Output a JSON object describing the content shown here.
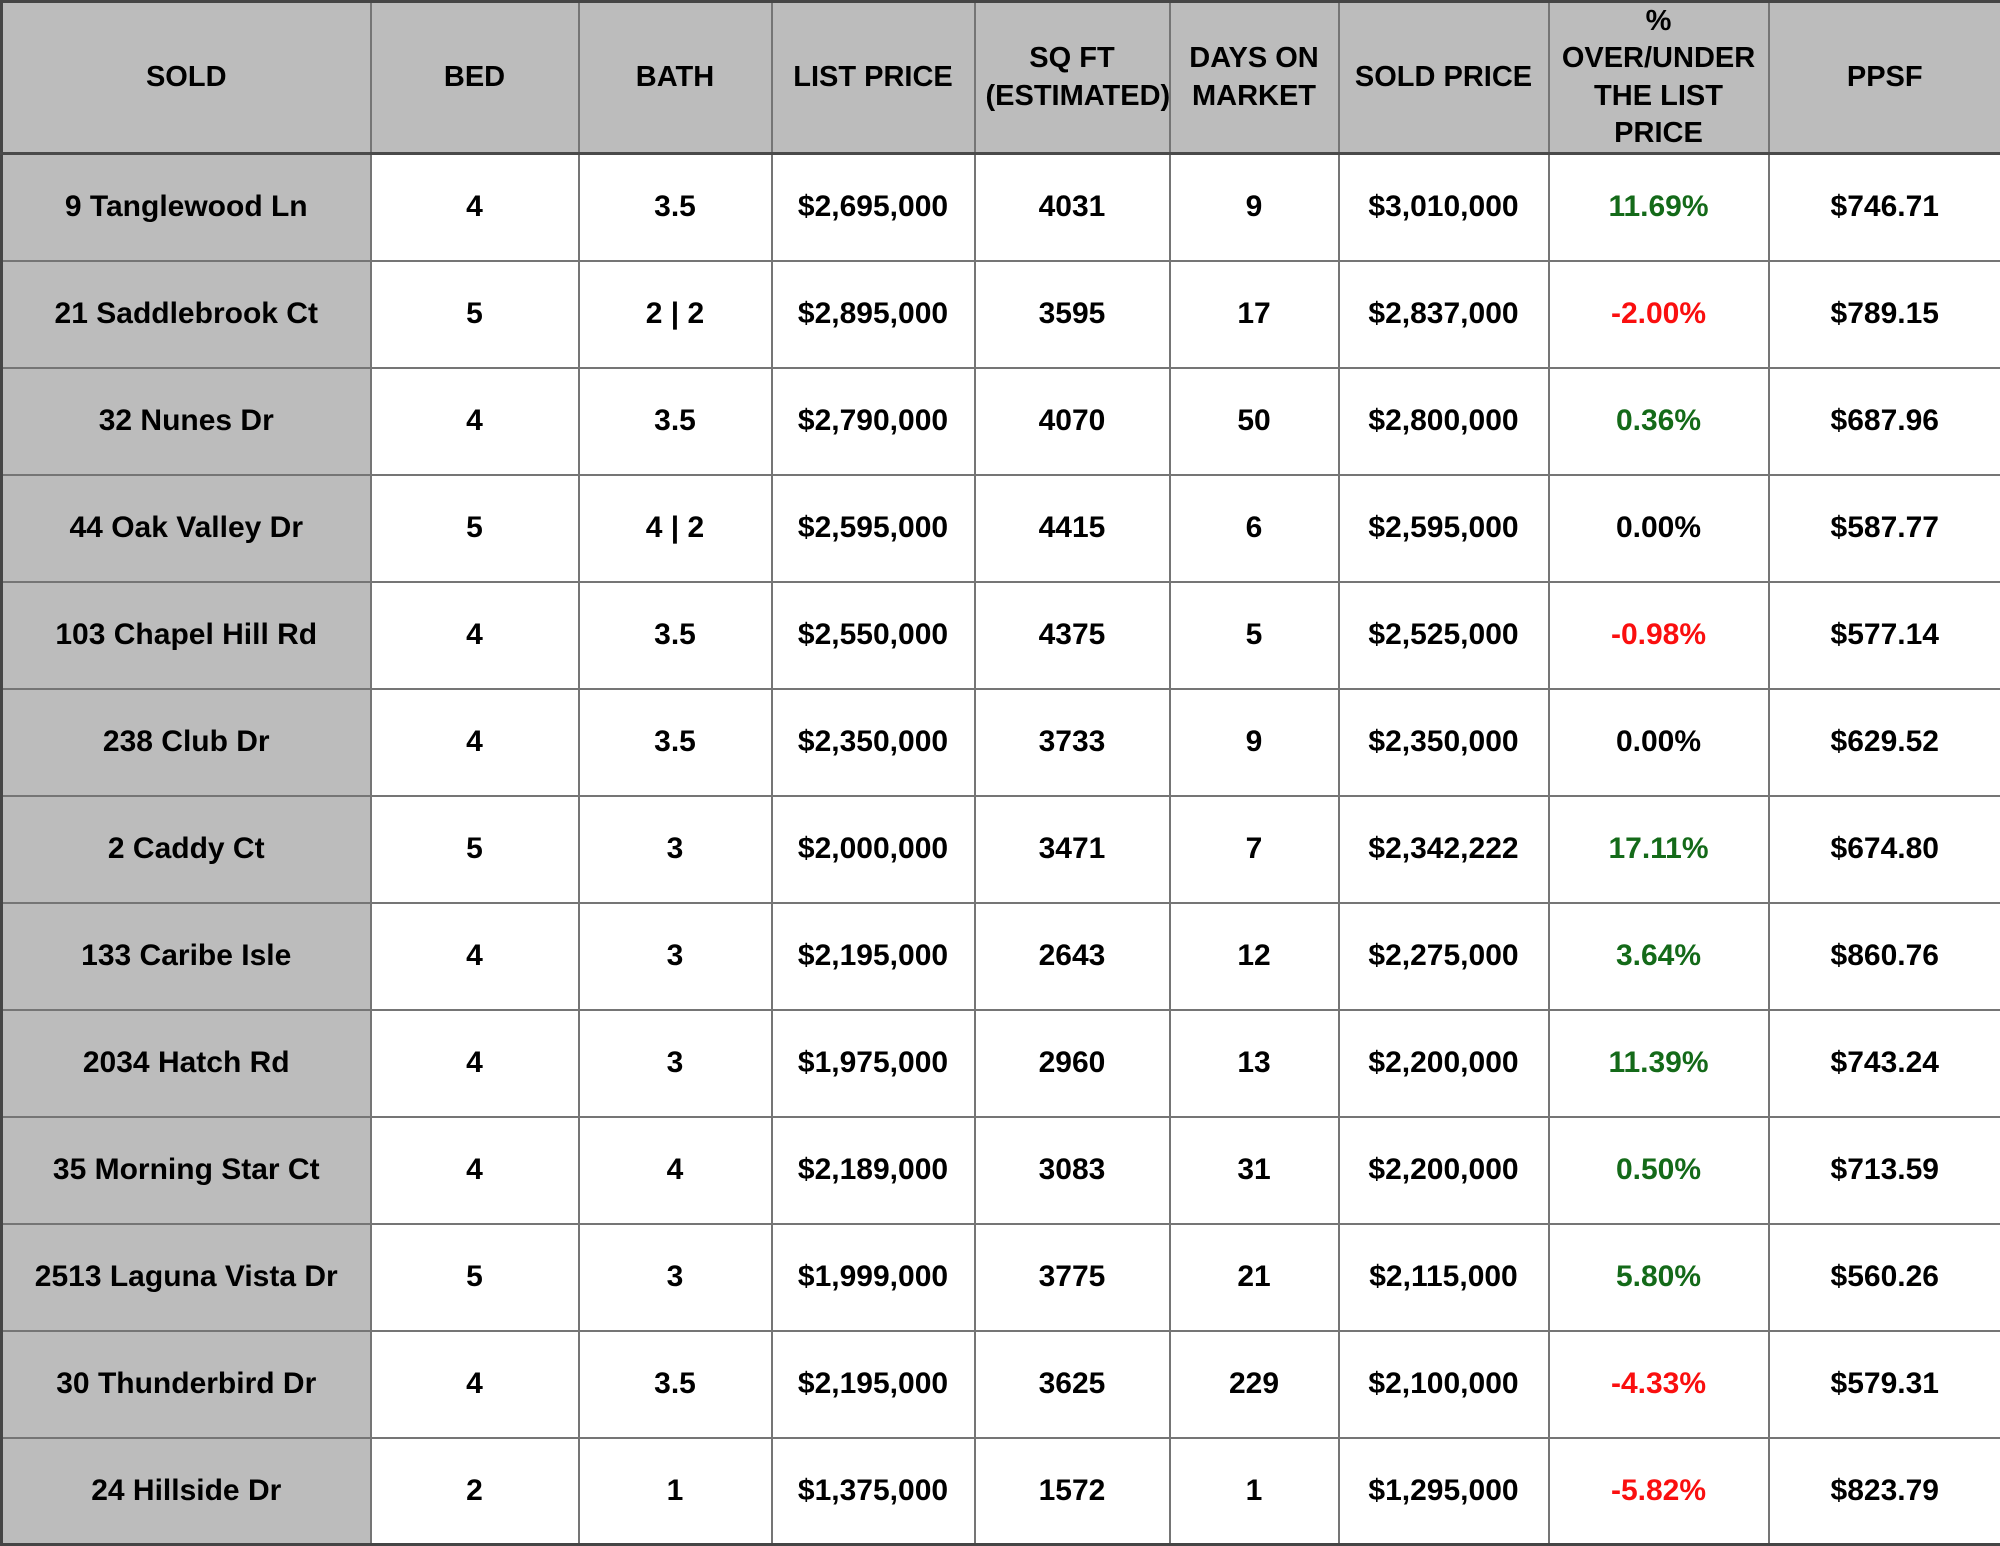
{
  "chart_data": {
    "type": "table",
    "columns": [
      {
        "id": "address",
        "label": "SOLD"
      },
      {
        "id": "bed",
        "label": "BED"
      },
      {
        "id": "bath",
        "label": "BATH"
      },
      {
        "id": "list_price",
        "label": "LIST PRICE"
      },
      {
        "id": "sqft",
        "label": "SQ FT (ESTIMATED)"
      },
      {
        "id": "days_on_market",
        "label": "DAYS ON MARKET"
      },
      {
        "id": "sold_price",
        "label": "SOLD PRICE"
      },
      {
        "id": "pct_over_under",
        "label": "% OVER/UNDER THE LIST PRICE"
      },
      {
        "id": "ppsf",
        "label": "PPSF"
      }
    ],
    "rows": [
      {
        "address": "9 Tanglewood Ln",
        "bed": "4",
        "bath": "3.5",
        "list_price": "$2,695,000",
        "sqft": "4031",
        "days_on_market": "9",
        "sold_price": "$3,010,000",
        "pct_over_under": "11.69%",
        "pct_trend": "positive",
        "ppsf": "$746.71"
      },
      {
        "address": "21 Saddlebrook Ct",
        "bed": "5",
        "bath": "2 | 2",
        "list_price": "$2,895,000",
        "sqft": "3595",
        "days_on_market": "17",
        "sold_price": "$2,837,000",
        "pct_over_under": "-2.00%",
        "pct_trend": "negative",
        "ppsf": "$789.15"
      },
      {
        "address": "32 Nunes Dr",
        "bed": "4",
        "bath": "3.5",
        "list_price": "$2,790,000",
        "sqft": "4070",
        "days_on_market": "50",
        "sold_price": "$2,800,000",
        "pct_over_under": "0.36%",
        "pct_trend": "positive",
        "ppsf": "$687.96"
      },
      {
        "address": "44 Oak Valley Dr",
        "bed": "5",
        "bath": "4 | 2",
        "list_price": "$2,595,000",
        "sqft": "4415",
        "days_on_market": "6",
        "sold_price": "$2,595,000",
        "pct_over_under": "0.00%",
        "pct_trend": "neutral",
        "ppsf": "$587.77"
      },
      {
        "address": "103 Chapel Hill Rd",
        "bed": "4",
        "bath": "3.5",
        "list_price": "$2,550,000",
        "sqft": "4375",
        "days_on_market": "5",
        "sold_price": "$2,525,000",
        "pct_over_under": "-0.98%",
        "pct_trend": "negative",
        "ppsf": "$577.14"
      },
      {
        "address": "238 Club Dr",
        "bed": "4",
        "bath": "3.5",
        "list_price": "$2,350,000",
        "sqft": "3733",
        "days_on_market": "9",
        "sold_price": "$2,350,000",
        "pct_over_under": "0.00%",
        "pct_trend": "neutral",
        "ppsf": "$629.52"
      },
      {
        "address": "2 Caddy Ct",
        "bed": "5",
        "bath": "3",
        "list_price": "$2,000,000",
        "sqft": "3471",
        "days_on_market": "7",
        "sold_price": "$2,342,222",
        "pct_over_under": "17.11%",
        "pct_trend": "positive",
        "ppsf": "$674.80"
      },
      {
        "address": "133 Caribe Isle",
        "bed": "4",
        "bath": "3",
        "list_price": "$2,195,000",
        "sqft": "2643",
        "days_on_market": "12",
        "sold_price": "$2,275,000",
        "pct_over_under": "3.64%",
        "pct_trend": "positive",
        "ppsf": "$860.76"
      },
      {
        "address": "2034 Hatch Rd",
        "bed": "4",
        "bath": "3",
        "list_price": "$1,975,000",
        "sqft": "2960",
        "days_on_market": "13",
        "sold_price": "$2,200,000",
        "pct_over_under": "11.39%",
        "pct_trend": "positive",
        "ppsf": "$743.24"
      },
      {
        "address": "35 Morning Star Ct",
        "bed": "4",
        "bath": "4",
        "list_price": "$2,189,000",
        "sqft": "3083",
        "days_on_market": "31",
        "sold_price": "$2,200,000",
        "pct_over_under": "0.50%",
        "pct_trend": "positive",
        "ppsf": "$713.59"
      },
      {
        "address": "2513 Laguna Vista Dr",
        "bed": "5",
        "bath": "3",
        "list_price": "$1,999,000",
        "sqft": "3775",
        "days_on_market": "21",
        "sold_price": "$2,115,000",
        "pct_over_under": "5.80%",
        "pct_trend": "positive",
        "ppsf": "$560.26"
      },
      {
        "address": "30 Thunderbird Dr",
        "bed": "4",
        "bath": "3.5",
        "list_price": "$2,195,000",
        "sqft": "3625",
        "days_on_market": "229",
        "sold_price": "$2,100,000",
        "pct_over_under": "-4.33%",
        "pct_trend": "negative",
        "ppsf": "$579.31"
      },
      {
        "address": "24 Hillside Dr",
        "bed": "2",
        "bath": "1",
        "list_price": "$1,375,000",
        "sqft": "1572",
        "days_on_market": "1",
        "sold_price": "$1,295,000",
        "pct_over_under": "-5.82%",
        "pct_trend": "negative",
        "ppsf": "$823.79"
      }
    ],
    "legend_position": "none",
    "grid": true
  },
  "colors": {
    "header_bg": "#bcbcbc",
    "cell_bg": "#ffffff",
    "grid_line": "#757575",
    "outer_border": "#454545",
    "text": "#000000",
    "positive_pct": "#146a19",
    "negative_pct": "#fa0f0f",
    "neutral_pct": "#000000"
  }
}
